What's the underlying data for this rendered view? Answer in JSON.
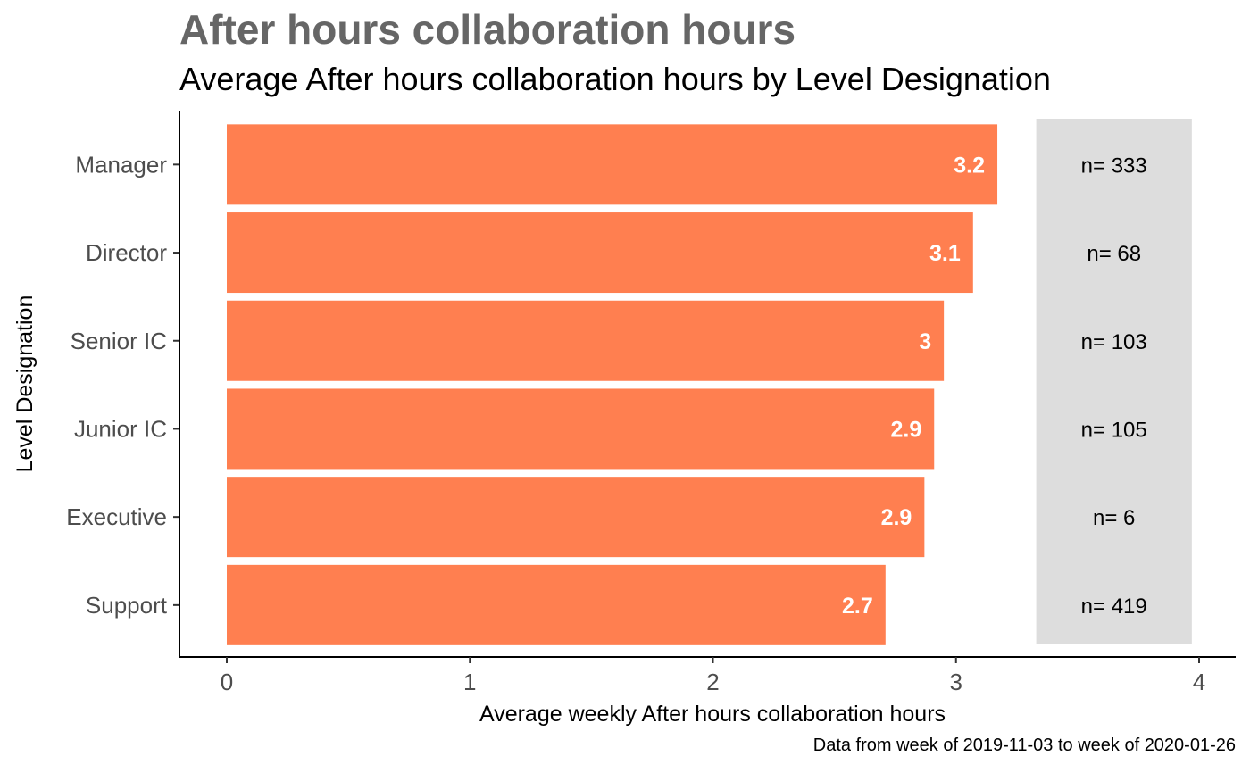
{
  "chart_data": {
    "type": "bar",
    "orientation": "horizontal",
    "title": "After hours collaboration hours",
    "subtitle": "Average After hours collaboration hours by Level Designation",
    "xlabel": "Average weekly After hours collaboration hours",
    "ylabel": "Level Designation",
    "caption": "Data from week of 2019-11-03 to week of 2020-01-26",
    "categories": [
      "Manager",
      "Director",
      "Senior IC",
      "Junior IC",
      "Executive",
      "Support"
    ],
    "values": [
      3.17,
      3.07,
      2.95,
      2.91,
      2.87,
      2.71
    ],
    "value_labels": [
      "3.2",
      "3.1",
      "3",
      "2.9",
      "2.9",
      "2.7"
    ],
    "n_labels": [
      "n= 333",
      "n= 68",
      "n= 103",
      "n= 105",
      "n= 6",
      "n= 419"
    ],
    "xticks": [
      0,
      1,
      2,
      3,
      4
    ],
    "xlim": [
      -0.2,
      4.15
    ],
    "n_panel_range": [
      3.33,
      3.97
    ],
    "grid": false,
    "colors": {
      "bar": "#FF7F50",
      "n_panel": "#DDDDDD",
      "title": "#666666"
    }
  }
}
